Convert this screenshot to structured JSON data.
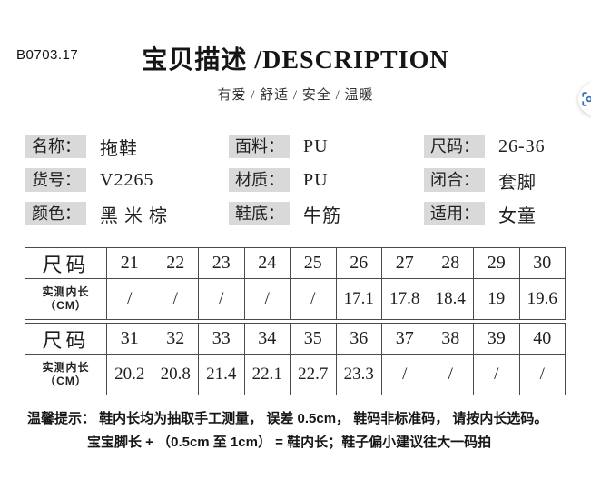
{
  "page": {
    "code": "B0703.17",
    "title": "宝贝描述 /DESCRIPTION",
    "subtitle": "有爱 / 舒适 / 安全 / 温暖"
  },
  "specs": {
    "columns": [
      [
        {
          "label": "名称：",
          "value": "拖鞋"
        },
        {
          "label": "货号：",
          "value": "V2265"
        },
        {
          "label": "颜色：",
          "value": "黑 米 棕"
        }
      ],
      [
        {
          "label": "面料：",
          "value": "PU"
        },
        {
          "label": "材质：",
          "value": "PU"
        },
        {
          "label": "鞋底：",
          "value": "牛筋"
        }
      ],
      [
        {
          "label": "尺码：",
          "value": "26-36"
        },
        {
          "label": "闭合：",
          "value": "套脚"
        },
        {
          "label": "适用：",
          "value": "女童"
        }
      ]
    ]
  },
  "size_table": {
    "tables": [
      {
        "rows": [
          {
            "lines": [
              "尺码"
            ],
            "type": "size",
            "cells": [
              "21",
              "22",
              "23",
              "24",
              "25",
              "26",
              "27",
              "28",
              "29",
              "30"
            ]
          },
          {
            "lines": [
              "实测内长",
              "（CM）"
            ],
            "type": "len",
            "cells": [
              "/",
              "/",
              "/",
              "/",
              "/",
              "17.1",
              "17.8",
              "18.4",
              "19",
              "19.6"
            ]
          }
        ]
      },
      {
        "rows": [
          {
            "lines": [
              "尺码"
            ],
            "type": "size",
            "cells": [
              "31",
              "32",
              "33",
              "34",
              "35",
              "36",
              "37",
              "38",
              "39",
              "40"
            ]
          },
          {
            "lines": [
              "实测内长",
              "（CM）"
            ],
            "type": "len",
            "cells": [
              "20.2",
              "20.8",
              "21.4",
              "22.1",
              "22.7",
              "23.3",
              "/",
              "/",
              "/",
              "/"
            ]
          }
        ]
      }
    ]
  },
  "tips": {
    "line1": "温馨提示： 鞋内长均为抽取手工测量， 误差 0.5cm， 鞋码非标准码， 请按内长选码。",
    "line2": "宝宝脚长 + （0.5cm 至 1cm） = 鞋内长；鞋子偏小建议往大一码拍"
  },
  "colors": {
    "label_bg": "#d9d9d9",
    "table_border": "#4a4a4a",
    "text": "#1f1f1f",
    "icon_blue": "#3d74b8"
  },
  "icons": {
    "float_button": "image-search-icon"
  }
}
